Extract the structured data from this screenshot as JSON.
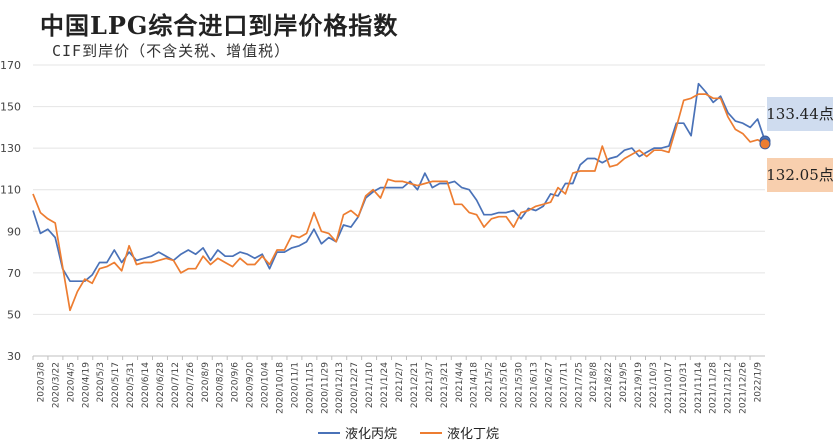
{
  "chart_data": {
    "type": "line",
    "title": "中国LPG综合进口到岸价格指数",
    "subtitle": "CIF到岸价（不含关税、增值税）",
    "ylim": [
      30,
      170
    ],
    "yticks": [
      30,
      50,
      70,
      90,
      110,
      130,
      150,
      170
    ],
    "grid": true,
    "legend_position": "bottom",
    "tick_labels": [
      "2020/3/8",
      "2020/3/22",
      "2020/4/5",
      "2020/4/19",
      "2020/5/3",
      "2020/5/17",
      "2020/5/31",
      "2020/6/14",
      "2020/6/28",
      "2020/7/12",
      "2020/7/26",
      "2020/8/9",
      "2020/8/23",
      "2020/9/6",
      "2020/9/20",
      "2020/10/4",
      "2020/10/18",
      "2020/11/1",
      "2020/11/15",
      "2020/11/29",
      "2020/12/13",
      "2020/12/27",
      "2021/1/10",
      "2021/1/24",
      "2021/2/7",
      "2021/2/21",
      "2021/3/7",
      "2021/3/21",
      "2021/4/4",
      "2021/4/18",
      "2021/5/2",
      "2021/5/16",
      "2021/5/30",
      "2021/6/13",
      "2021/6/27",
      "2021/7/11",
      "2021/7/25",
      "2021/8/8",
      "2021/8/22",
      "2021/9/5",
      "2021/9/19",
      "2021/10/3",
      "2021/10/17",
      "2021/10/31",
      "2021/11/14",
      "2021/11/28",
      "2021/12/12",
      "2021/12/26",
      "2022/1/9"
    ],
    "series": [
      {
        "name": "液化丙烷",
        "color": "#4a72b8",
        "values": [
          100,
          89,
          91,
          87,
          72,
          66,
          66,
          66,
          69,
          75,
          75,
          81,
          75,
          80,
          76,
          77,
          78,
          80,
          78,
          76,
          79,
          81,
          79,
          82,
          76,
          81,
          78,
          78,
          80,
          79,
          77,
          79,
          72,
          80,
          80,
          82,
          83,
          85,
          91,
          84,
          87,
          85,
          93,
          92,
          97,
          106,
          109,
          111,
          111,
          111,
          111,
          114,
          110,
          118,
          111,
          113,
          113,
          114,
          111,
          110,
          105,
          98,
          98,
          99,
          99,
          100,
          96,
          101,
          100,
          102,
          108,
          107,
          113,
          113,
          122,
          125,
          125,
          123,
          125,
          126,
          129,
          130,
          126,
          128,
          130,
          130,
          131,
          142,
          142,
          136,
          161,
          157,
          152,
          155,
          147,
          143,
          142,
          140,
          144,
          133.44
        ],
        "end_label": "133.44点"
      },
      {
        "name": "液化丁烷",
        "color": "#ed7d31",
        "values": [
          108,
          99,
          96,
          94,
          73,
          52,
          61,
          67,
          65,
          72,
          73,
          75,
          71,
          83,
          74,
          75,
          75,
          76,
          77,
          76,
          70,
          72,
          72,
          78,
          74,
          77,
          75,
          73,
          77,
          74,
          74,
          78,
          74,
          81,
          81,
          88,
          87,
          89,
          99,
          90,
          89,
          85,
          98,
          100,
          97,
          107,
          110,
          106,
          115,
          114,
          114,
          113,
          112,
          113,
          114,
          114,
          114,
          103,
          103,
          99,
          98,
          92,
          96,
          97,
          97,
          92,
          99,
          100,
          102,
          103,
          104,
          111,
          108,
          118,
          119,
          119,
          119,
          131,
          121,
          122,
          125,
          127,
          129,
          126,
          129,
          129,
          128,
          140,
          153,
          154,
          156,
          156,
          154,
          154,
          145,
          139,
          137,
          133,
          134,
          132.05
        ],
        "end_label": "132.05点"
      }
    ]
  }
}
